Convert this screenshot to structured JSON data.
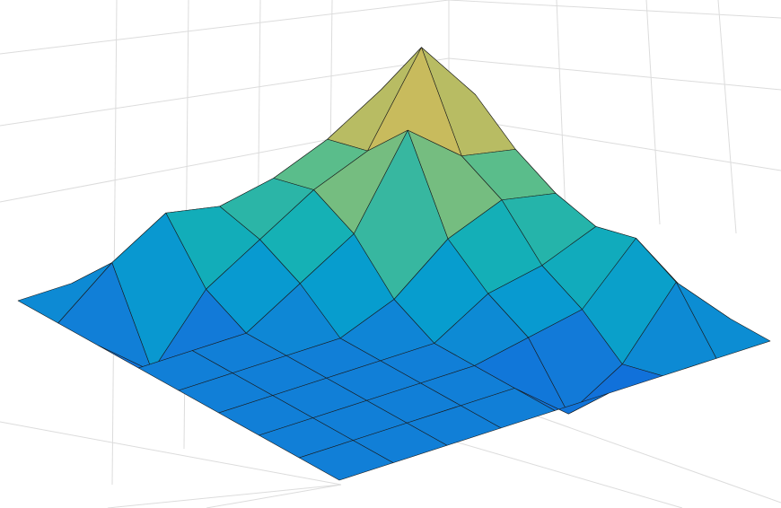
{
  "chart_data": {
    "type": "surface",
    "colormap": "parula",
    "grid": true,
    "zlim": [
      -0.3,
      1
    ],
    "z": [
      [
        0,
        0,
        0,
        0,
        0,
        0,
        0,
        0,
        0
      ],
      [
        0,
        0.55,
        0.6,
        0.45,
        0.35,
        0.3,
        0.35,
        0.25,
        0
      ],
      [
        0,
        0.6,
        0.9,
        0.5,
        0.4,
        0.2,
        0.1,
        -0.05,
        0
      ],
      [
        0,
        0.45,
        0.5,
        0.7,
        0.3,
        0.15,
        0.05,
        -0.2,
        0
      ],
      [
        0,
        0.35,
        0.4,
        0.3,
        0.1,
        0,
        0,
        0,
        0
      ],
      [
        0,
        0.3,
        0.25,
        0.15,
        0,
        0,
        0,
        0,
        0
      ],
      [
        0,
        0.35,
        0.1,
        0,
        0,
        0,
        0,
        0,
        0
      ],
      [
        0,
        0.2,
        -0.2,
        0,
        0,
        0,
        0,
        0,
        0
      ],
      [
        0,
        0,
        0,
        0,
        0,
        0,
        0,
        0,
        0
      ]
    ]
  }
}
